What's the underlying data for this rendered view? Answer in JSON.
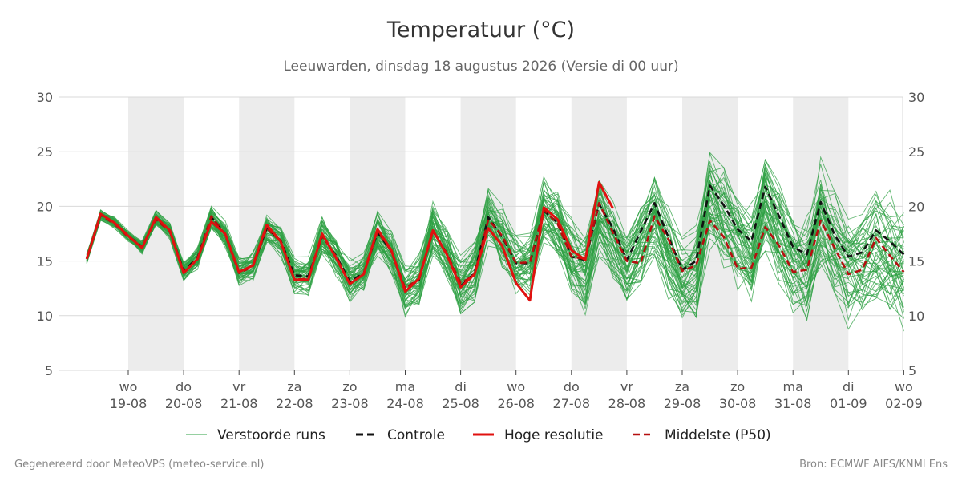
{
  "chart_data": {
    "type": "line",
    "title": "Temperatuur (°C)",
    "subtitle": "Leeuwarden, dinsdag 18 augustus 2026 (Versie di 00 uur)",
    "ylim": [
      5,
      30
    ],
    "yticks": [
      5,
      10,
      15,
      20,
      25,
      30
    ],
    "xlim": [
      -0.75,
      15
    ],
    "x_unit": "days since 19-08",
    "xticks": [
      {
        "day": "wo",
        "date": "19-08"
      },
      {
        "day": "do",
        "date": "20-08"
      },
      {
        "day": "vr",
        "date": "21-08"
      },
      {
        "day": "za",
        "date": "22-08"
      },
      {
        "day": "zo",
        "date": "23-08"
      },
      {
        "day": "ma",
        "date": "24-08"
      },
      {
        "day": "di",
        "date": "25-08"
      },
      {
        "day": "wo",
        "date": "26-08"
      },
      {
        "day": "do",
        "date": "27-08"
      },
      {
        "day": "vr",
        "date": "28-08"
      },
      {
        "day": "za",
        "date": "29-08"
      },
      {
        "day": "zo",
        "date": "30-08"
      },
      {
        "day": "ma",
        "date": "31-08"
      },
      {
        "day": "di",
        "date": "01-09"
      },
      {
        "day": "wo",
        "date": "02-09"
      }
    ],
    "weekend_shading": [
      [
        0,
        1
      ],
      [
        2,
        3
      ],
      [
        4,
        5
      ],
      [
        6,
        7
      ],
      [
        8,
        9
      ],
      [
        10,
        11
      ],
      [
        12,
        13
      ]
    ],
    "grid": true,
    "legend_position": "bottom",
    "x_step": 0.25,
    "x_start": -0.75,
    "series": [
      {
        "name": "Hoge resolutie",
        "color": "#e0110f",
        "style": "solid",
        "values": [
          15.2,
          19.3,
          18.5,
          17.3,
          16.2,
          19.0,
          17.8,
          13.9,
          15.2,
          18.6,
          17.5,
          14.0,
          14.6,
          18.3,
          16.8,
          13.3,
          13.3,
          17.5,
          15.3,
          12.9,
          13.8,
          17.9,
          16.0,
          12.2,
          13.4,
          17.8,
          15.6,
          12.6,
          13.8,
          18.0,
          16.4,
          13.0,
          11.4,
          19.9,
          18.8,
          16.0,
          15.1,
          22.2,
          19.8
        ]
      },
      {
        "name": "Controle",
        "color": "#111111",
        "style": "dashed",
        "values": [
          15.2,
          19.2,
          18.5,
          17.3,
          16.3,
          18.9,
          17.8,
          14.1,
          15.3,
          19.0,
          17.5,
          14.0,
          14.6,
          18.0,
          16.9,
          13.7,
          13.6,
          17.3,
          15.5,
          13.1,
          13.9,
          17.6,
          15.9,
          12.3,
          13.3,
          17.8,
          15.7,
          12.7,
          13.9,
          19.0,
          17.2,
          14.8,
          14.8,
          19.6,
          18.5,
          15.4,
          15.1,
          20.2,
          18.0,
          15.1,
          17.7,
          20.3,
          17.2,
          14.2,
          15.0,
          21.9,
          20.1,
          17.9,
          16.8,
          21.8,
          19.1,
          16.3,
          15.6,
          20.4,
          17.4,
          15.4,
          15.8,
          17.8,
          16.8,
          15.6
        ]
      },
      {
        "name": "Middelste (P50)",
        "color": "#b50f0f",
        "style": "dashed",
        "values": [
          15.2,
          19.2,
          18.4,
          17.2,
          16.3,
          18.8,
          17.7,
          14.0,
          15.1,
          19.1,
          17.4,
          13.9,
          14.5,
          18.0,
          16.8,
          13.3,
          13.4,
          17.3,
          15.4,
          12.9,
          13.8,
          17.7,
          15.9,
          12.5,
          13.4,
          17.7,
          15.7,
          13.0,
          13.7,
          18.8,
          17.3,
          14.8,
          14.9,
          19.7,
          18.4,
          15.4,
          15.2,
          20.3,
          17.6,
          15.0,
          14.8,
          19.1,
          17.0,
          14.1,
          14.6,
          18.7,
          17.2,
          14.3,
          14.4,
          18.1,
          16.4,
          14.0,
          14.2,
          18.7,
          16.2,
          13.8,
          14.2,
          17.1,
          15.5,
          14.0
        ]
      }
    ],
    "ensemble": {
      "name": "Verstoorde runs",
      "color": "#2ea043",
      "count": 50
    }
  },
  "legend": {
    "items": [
      "Verstoorde runs",
      "Controle",
      "Hoge resolutie",
      "Middelste (P50)"
    ]
  },
  "footer": {
    "left": "Gegenereerd door MeteoVPS (meteo-service.nl)",
    "right": "Bron: ECMWF AIFS/KNMI Ens"
  }
}
